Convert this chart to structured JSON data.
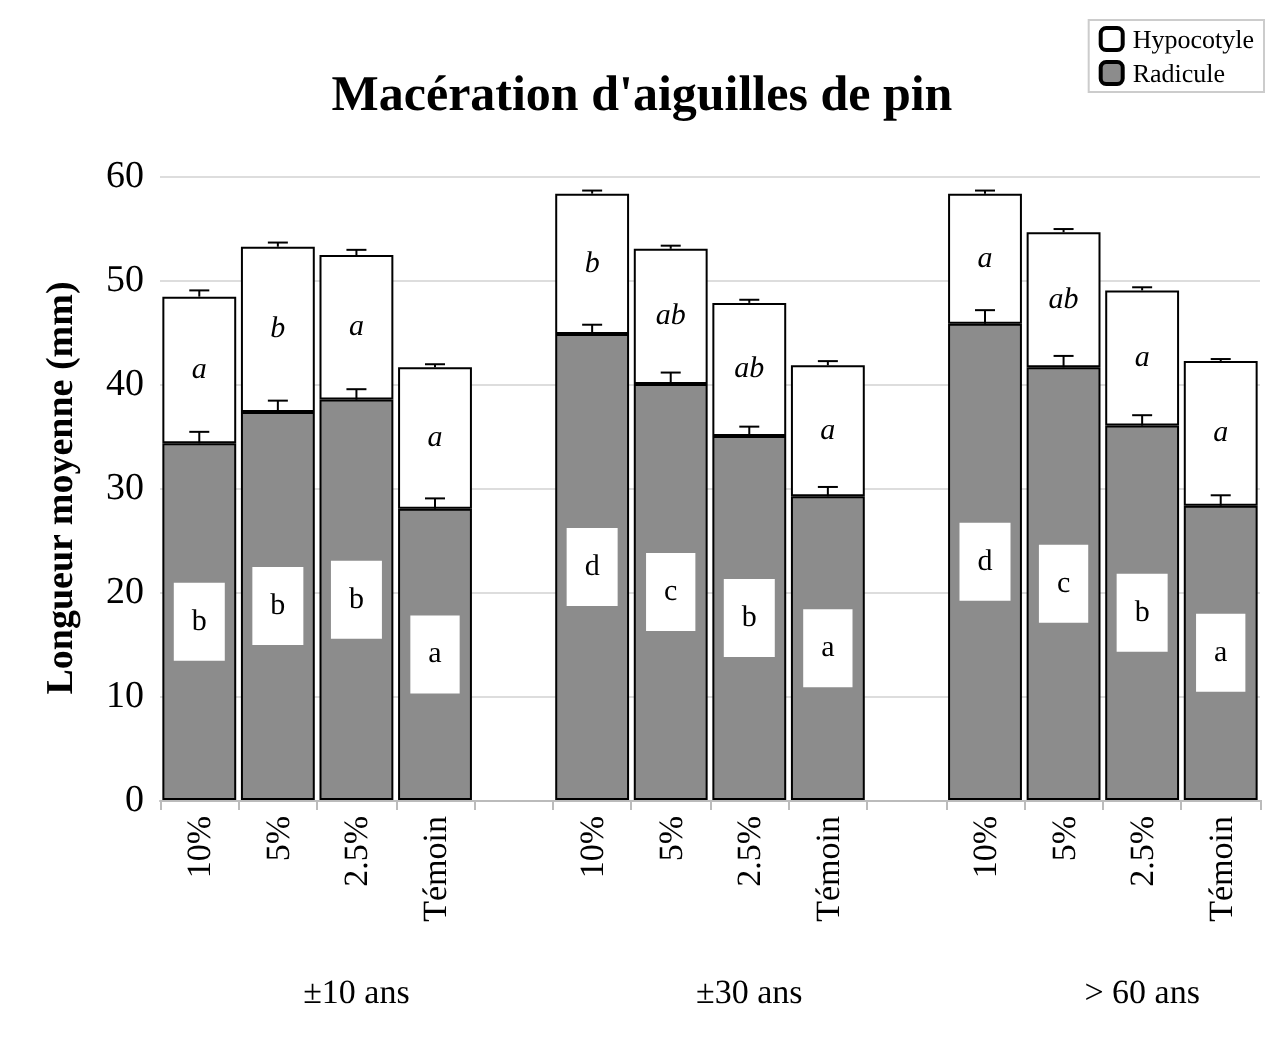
{
  "chart_data": {
    "type": "bar",
    "stacked": true,
    "title": "Macération d'aiguilles de pin",
    "ylabel": "Longueur moyenne (mm)",
    "categories": [
      "10%",
      "5%",
      "2.5%",
      "Témoin",
      null,
      "10%",
      "5%",
      "2.5%",
      "Témoin",
      null,
      "10%",
      "5%",
      "2.5%",
      "Témoin"
    ],
    "series": [
      {
        "name": "Radicule",
        "color": "#8c8c8c",
        "values": [
          34.3,
          37.3,
          38.5,
          28.0,
          null,
          44.8,
          40.0,
          35.0,
          29.2,
          null,
          45.8,
          41.6,
          36.0,
          28.3
        ],
        "errors": [
          1.1,
          1.1,
          1.0,
          1.0,
          null,
          0.9,
          1.1,
          0.9,
          0.9,
          null,
          1.3,
          1.1,
          1.0,
          1.0
        ],
        "value_labels": [
          "b",
          "b",
          "b",
          "a",
          null,
          "d",
          "c",
          "b",
          "a",
          null,
          "d",
          "c",
          "b",
          "a"
        ]
      },
      {
        "name": "Hypocotyle",
        "color": "#ffffff",
        "values": [
          14.1,
          15.9,
          13.9,
          13.6,
          null,
          13.5,
          13.0,
          12.8,
          12.6,
          null,
          12.5,
          13.0,
          13.0,
          13.9
        ],
        "errors": [
          0.6,
          0.4,
          0.5,
          0.3,
          null,
          0.3,
          0.3,
          0.3,
          0.4,
          null,
          0.3,
          0.3,
          0.3,
          0.2
        ],
        "value_labels": [
          "a",
          "b",
          "a",
          "a",
          null,
          "b",
          "ab",
          "ab",
          "a",
          null,
          "a",
          "ab",
          "a",
          "a"
        ]
      }
    ],
    "ylim": [
      0,
      60
    ],
    "yticks": [
      0,
      10,
      20,
      30,
      40,
      50,
      60
    ],
    "grid": "y",
    "legend": "top right",
    "annotations": [
      "±10 ans",
      "±30 ans",
      "> 60 ans"
    ]
  }
}
